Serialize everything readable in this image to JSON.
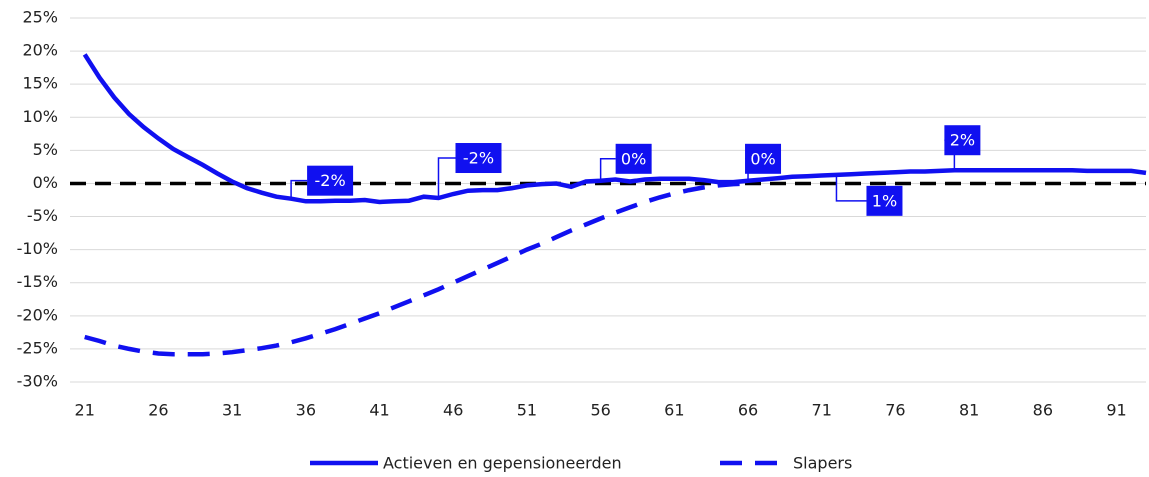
{
  "chart_data": {
    "type": "line",
    "x": [
      21,
      22,
      23,
      24,
      25,
      26,
      27,
      28,
      29,
      30,
      31,
      32,
      33,
      34,
      35,
      36,
      37,
      38,
      39,
      40,
      41,
      42,
      43,
      44,
      45,
      46,
      47,
      48,
      49,
      50,
      51,
      52,
      53,
      54,
      55,
      56,
      57,
      58,
      59,
      60,
      61,
      62,
      63,
      64,
      65,
      66,
      67,
      68,
      69,
      70,
      71,
      72,
      73,
      74,
      75,
      76,
      77,
      78,
      79,
      80,
      81,
      82,
      83,
      84,
      85,
      86,
      87,
      88,
      89,
      90,
      91,
      92,
      93
    ],
    "xlim": [
      20,
      93
    ],
    "xticks": [
      21,
      26,
      31,
      36,
      41,
      46,
      51,
      56,
      61,
      66,
      71,
      76,
      81,
      86,
      91
    ],
    "ylim": [
      -30,
      25
    ],
    "yticks": [
      {
        "value": -30,
        "label": "-30%"
      },
      {
        "value": -25,
        "label": "-25%"
      },
      {
        "value": -20,
        "label": "-20%"
      },
      {
        "value": -15,
        "label": "-15%"
      },
      {
        "value": -10,
        "label": "-10%"
      },
      {
        "value": -5,
        "label": "-5%"
      },
      {
        "value": 0,
        "label": "0%"
      },
      {
        "value": 5,
        "label": "5%"
      },
      {
        "value": 10,
        "label": "10%"
      },
      {
        "value": 15,
        "label": "15%"
      },
      {
        "value": 20,
        "label": "20%"
      },
      {
        "value": 25,
        "label": "25%"
      }
    ],
    "grid": true,
    "series": [
      {
        "name": "Actieven en gepensioneerden",
        "color": "#1010f0",
        "dash": false,
        "values": [
          19.5,
          16,
          13,
          10.5,
          8.5,
          6.8,
          5.2,
          4,
          2.8,
          1.5,
          0.3,
          -0.7,
          -1.4,
          -2,
          -2.3,
          -2.7,
          -2.7,
          -2.6,
          -2.6,
          -2.5,
          -2.8,
          -2.7,
          -2.6,
          -2,
          -2.2,
          -1.6,
          -1.1,
          -1,
          -1,
          -0.7,
          -0.3,
          -0.1,
          0,
          -0.5,
          0.3,
          0.4,
          0.6,
          0.3,
          0.6,
          0.7,
          0.7,
          0.7,
          0.5,
          0.2,
          0.2,
          0.4,
          0.6,
          0.8,
          1,
          1.1,
          1.2,
          1.3,
          1.4,
          1.5,
          1.6,
          1.7,
          1.8,
          1.8,
          1.9,
          2,
          2,
          2,
          2,
          2,
          2,
          2,
          2,
          2,
          1.9,
          1.9,
          1.9,
          1.9,
          1.6
        ],
        "value_labels": [
          null,
          null,
          null,
          null,
          null,
          null,
          null,
          null,
          null,
          null,
          null,
          null,
          null,
          null,
          "-2%",
          null,
          null,
          null,
          null,
          null,
          null,
          null,
          null,
          null,
          "-2%",
          null,
          null,
          null,
          null,
          null,
          null,
          null,
          null,
          null,
          null,
          "0%",
          null,
          null,
          null,
          null,
          null,
          null,
          null,
          null,
          null,
          "0%",
          null,
          null,
          null,
          null,
          null,
          "1%",
          null,
          null,
          null,
          null,
          null,
          null,
          null,
          "2%",
          null,
          null,
          null,
          null,
          null,
          null,
          null,
          null,
          null,
          null,
          null,
          null,
          null
        ]
      },
      {
        "name": "Slapers",
        "color": "#1010f0",
        "dash": true,
        "values": [
          -23.2,
          -23.8,
          -24.5,
          -25,
          -25.4,
          -25.7,
          -25.8,
          -25.8,
          -25.8,
          -25.7,
          -25.5,
          -25.2,
          -24.9,
          -24.5,
          -24,
          -23.4,
          -22.7,
          -22,
          -21.2,
          -20.4,
          -19.6,
          -18.7,
          -17.8,
          -16.9,
          -16,
          -15,
          -14,
          -13,
          -12,
          -11,
          -10,
          -9.1,
          -8.1,
          -7.1,
          -6.2,
          -5.3,
          -4.4,
          -3.6,
          -2.8,
          -2.1,
          -1.5,
          -1,
          -0.6,
          -0.3,
          -0.1,
          0,
          null,
          null,
          null,
          null,
          null,
          null,
          null,
          null,
          null,
          null,
          null,
          null,
          null,
          null,
          null,
          null,
          null,
          null,
          null,
          null,
          null,
          null,
          null,
          null,
          null,
          null,
          null
        ]
      }
    ]
  }
}
